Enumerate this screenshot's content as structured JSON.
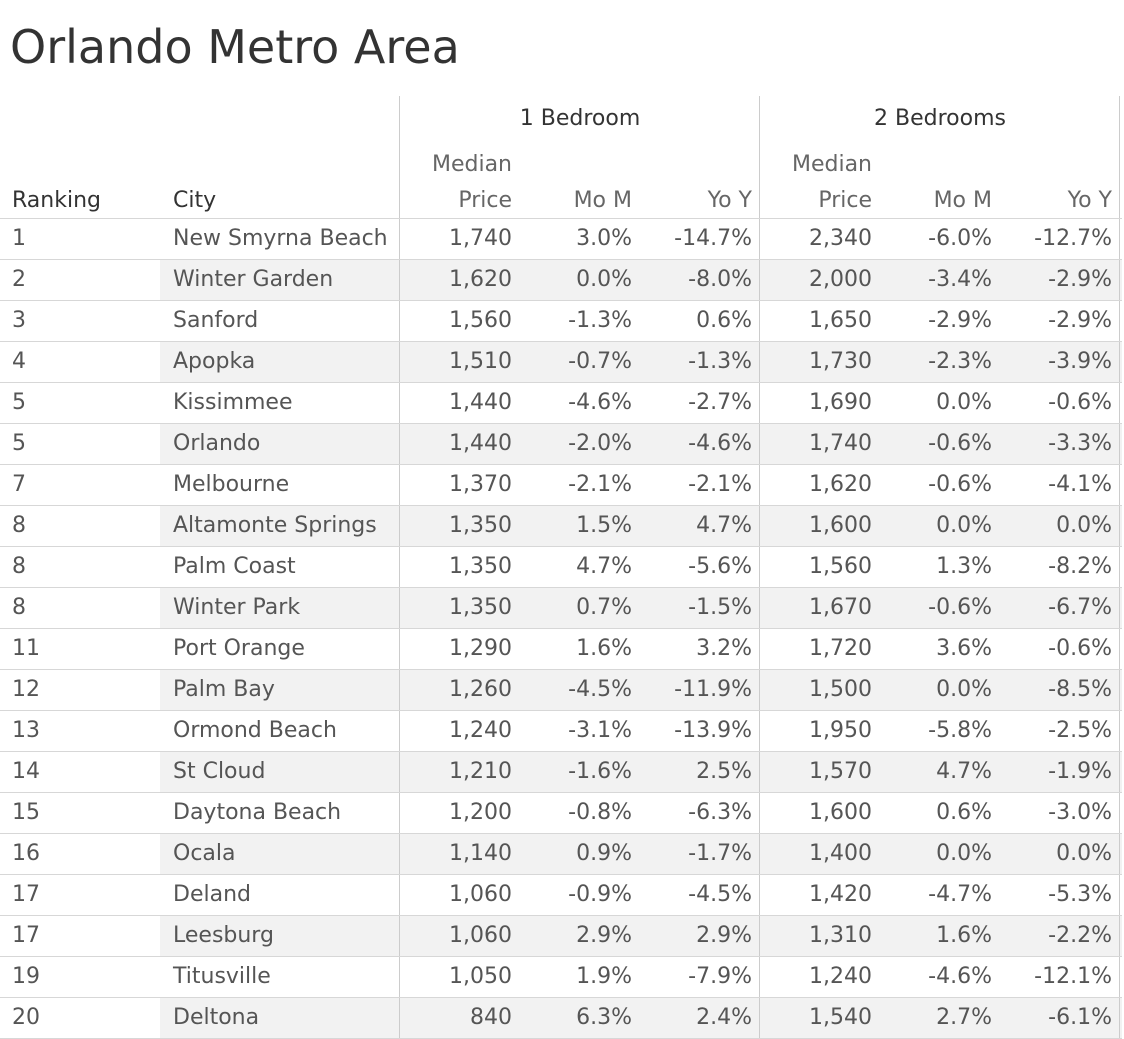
{
  "title": "Orlando Metro Area",
  "columns": {
    "ranking": "Ranking",
    "city": "City",
    "group1": "1 Bedroom",
    "group2": "2 Bedrooms",
    "median_line1": "Median",
    "median_line2": "Price",
    "mom": "Mo M",
    "yoy": "Yo Y"
  },
  "chart_data": {
    "type": "table",
    "title": "Orlando Metro Area",
    "headers": [
      "Ranking",
      "City",
      "1 Bedroom Median Price",
      "1 Bedroom Mo M",
      "1 Bedroom Yo Y",
      "2 Bedrooms Median Price",
      "2 Bedrooms Mo M",
      "2 Bedrooms Yo Y"
    ],
    "rows": [
      {
        "rank": "1",
        "city": "New Smyrna Beach",
        "b1_price": "1,740",
        "b1_mom": "3.0%",
        "b1_yoy": "-14.7%",
        "b2_price": "2,340",
        "b2_mom": "-6.0%",
        "b2_yoy": "-12.7%"
      },
      {
        "rank": "2",
        "city": "Winter Garden",
        "b1_price": "1,620",
        "b1_mom": "0.0%",
        "b1_yoy": "-8.0%",
        "b2_price": "2,000",
        "b2_mom": "-3.4%",
        "b2_yoy": "-2.9%"
      },
      {
        "rank": "3",
        "city": "Sanford",
        "b1_price": "1,560",
        "b1_mom": "-1.3%",
        "b1_yoy": "0.6%",
        "b2_price": "1,650",
        "b2_mom": "-2.9%",
        "b2_yoy": "-2.9%"
      },
      {
        "rank": "4",
        "city": "Apopka",
        "b1_price": "1,510",
        "b1_mom": "-0.7%",
        "b1_yoy": "-1.3%",
        "b2_price": "1,730",
        "b2_mom": "-2.3%",
        "b2_yoy": "-3.9%"
      },
      {
        "rank": "5",
        "city": "Kissimmee",
        "b1_price": "1,440",
        "b1_mom": "-4.6%",
        "b1_yoy": "-2.7%",
        "b2_price": "1,690",
        "b2_mom": "0.0%",
        "b2_yoy": "-0.6%"
      },
      {
        "rank": "5",
        "city": "Orlando",
        "b1_price": "1,440",
        "b1_mom": "-2.0%",
        "b1_yoy": "-4.6%",
        "b2_price": "1,740",
        "b2_mom": "-0.6%",
        "b2_yoy": "-3.3%"
      },
      {
        "rank": "7",
        "city": "Melbourne",
        "b1_price": "1,370",
        "b1_mom": "-2.1%",
        "b1_yoy": "-2.1%",
        "b2_price": "1,620",
        "b2_mom": "-0.6%",
        "b2_yoy": "-4.1%"
      },
      {
        "rank": "8",
        "city": "Altamonte Springs",
        "b1_price": "1,350",
        "b1_mom": "1.5%",
        "b1_yoy": "4.7%",
        "b2_price": "1,600",
        "b2_mom": "0.0%",
        "b2_yoy": "0.0%"
      },
      {
        "rank": "8",
        "city": "Palm Coast",
        "b1_price": "1,350",
        "b1_mom": "4.7%",
        "b1_yoy": "-5.6%",
        "b2_price": "1,560",
        "b2_mom": "1.3%",
        "b2_yoy": "-8.2%"
      },
      {
        "rank": "8",
        "city": "Winter Park",
        "b1_price": "1,350",
        "b1_mom": "0.7%",
        "b1_yoy": "-1.5%",
        "b2_price": "1,670",
        "b2_mom": "-0.6%",
        "b2_yoy": "-6.7%"
      },
      {
        "rank": "11",
        "city": "Port Orange",
        "b1_price": "1,290",
        "b1_mom": "1.6%",
        "b1_yoy": "3.2%",
        "b2_price": "1,720",
        "b2_mom": "3.6%",
        "b2_yoy": "-0.6%"
      },
      {
        "rank": "12",
        "city": "Palm Bay",
        "b1_price": "1,260",
        "b1_mom": "-4.5%",
        "b1_yoy": "-11.9%",
        "b2_price": "1,500",
        "b2_mom": "0.0%",
        "b2_yoy": "-8.5%"
      },
      {
        "rank": "13",
        "city": "Ormond Beach",
        "b1_price": "1,240",
        "b1_mom": "-3.1%",
        "b1_yoy": "-13.9%",
        "b2_price": "1,950",
        "b2_mom": "-5.8%",
        "b2_yoy": "-2.5%"
      },
      {
        "rank": "14",
        "city": "St Cloud",
        "b1_price": "1,210",
        "b1_mom": "-1.6%",
        "b1_yoy": "2.5%",
        "b2_price": "1,570",
        "b2_mom": "4.7%",
        "b2_yoy": "-1.9%"
      },
      {
        "rank": "15",
        "city": "Daytona Beach",
        "b1_price": "1,200",
        "b1_mom": "-0.8%",
        "b1_yoy": "-6.3%",
        "b2_price": "1,600",
        "b2_mom": "0.6%",
        "b2_yoy": "-3.0%"
      },
      {
        "rank": "16",
        "city": "Ocala",
        "b1_price": "1,140",
        "b1_mom": "0.9%",
        "b1_yoy": "-1.7%",
        "b2_price": "1,400",
        "b2_mom": "0.0%",
        "b2_yoy": "0.0%"
      },
      {
        "rank": "17",
        "city": "Deland",
        "b1_price": "1,060",
        "b1_mom": "-0.9%",
        "b1_yoy": "-4.5%",
        "b2_price": "1,420",
        "b2_mom": "-4.7%",
        "b2_yoy": "-5.3%"
      },
      {
        "rank": "17",
        "city": "Leesburg",
        "b1_price": "1,060",
        "b1_mom": "2.9%",
        "b1_yoy": "2.9%",
        "b2_price": "1,310",
        "b2_mom": "1.6%",
        "b2_yoy": "-2.2%"
      },
      {
        "rank": "19",
        "city": "Titusville",
        "b1_price": "1,050",
        "b1_mom": "1.9%",
        "b1_yoy": "-7.9%",
        "b2_price": "1,240",
        "b2_mom": "-4.6%",
        "b2_yoy": "-12.1%"
      },
      {
        "rank": "20",
        "city": "Deltona",
        "b1_price": "840",
        "b1_mom": "6.3%",
        "b1_yoy": "2.4%",
        "b2_price": "1,540",
        "b2_mom": "2.7%",
        "b2_yoy": "-6.1%"
      }
    ]
  }
}
